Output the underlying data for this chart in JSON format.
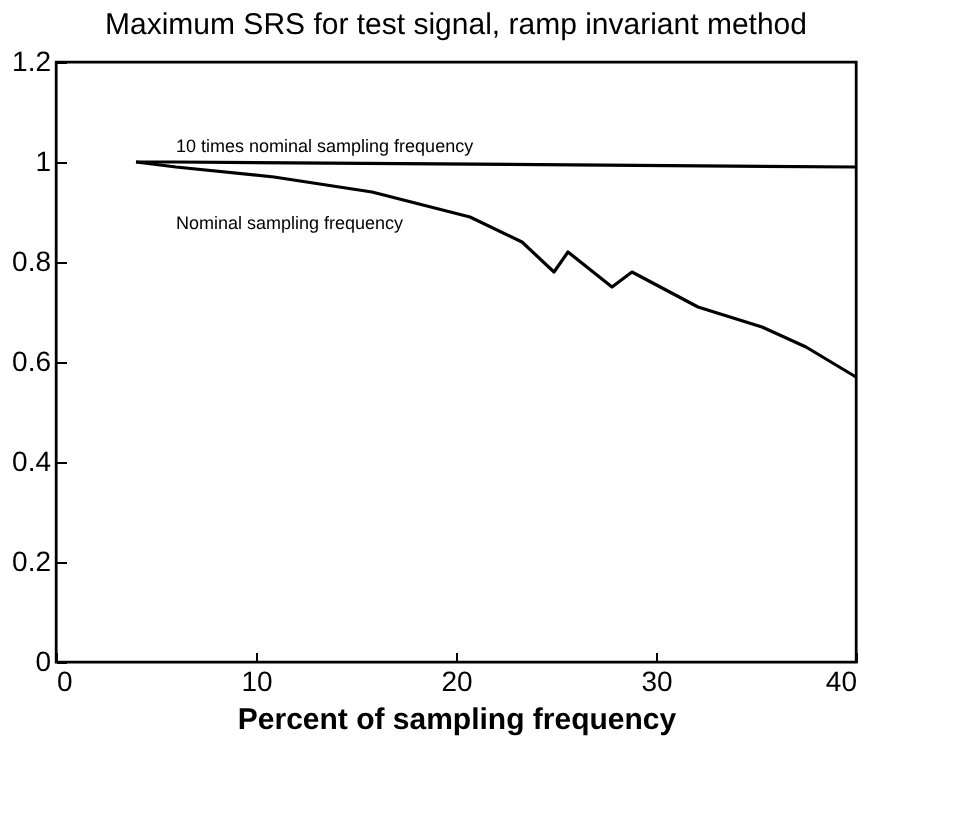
{
  "chart_data": {
    "type": "line",
    "title": "Maximum SRS for test signal, ramp invariant method",
    "xlabel": "Percent of sampling frequency",
    "xlim": [
      0,
      40
    ],
    "xticks": [
      0,
      10,
      20,
      30,
      40
    ],
    "ylim": [
      0,
      1.2
    ],
    "yticks": [
      0,
      0.2,
      0.4,
      0.6,
      0.8,
      1,
      1.2
    ],
    "grid": false,
    "legend": false,
    "marker": "none",
    "line_style": "solid",
    "series": [
      {
        "name": "10 times nominal sampling frequency",
        "color": "#000000",
        "x": [
          4,
          6,
          40
        ],
        "values": [
          1.0,
          1.0,
          0.99
        ]
      },
      {
        "name": "Nominal sampling frequency",
        "color": "#000000",
        "x": [
          4,
          6,
          10.9,
          15.8,
          20.7,
          23.3,
          24.9,
          25.6,
          27.8,
          28.8,
          32.1,
          35.3,
          37.5,
          40
        ],
        "values": [
          1.0,
          0.99,
          0.97,
          0.94,
          0.89,
          0.84,
          0.78,
          0.82,
          0.75,
          0.78,
          0.71,
          0.67,
          0.63,
          0.57
        ]
      }
    ]
  }
}
